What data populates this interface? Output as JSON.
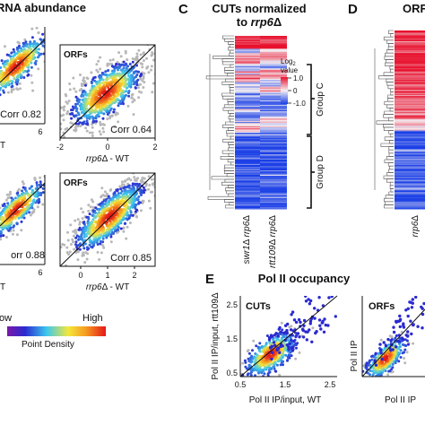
{
  "colors": {
    "heat_red": "#e8112d",
    "heat_white": "#f4f0f4",
    "heat_blue": "#1a3fe6",
    "density_low": "#2a2ad0",
    "density_mid": "#3cc8ee",
    "density_high": "#e41818",
    "scatter_gray": "#b8b8b8"
  },
  "panel_a": {
    "title_fragment": "RNA abundance",
    "plots": [
      {
        "tag": "",
        "corr_label": "Corr 0.82",
        "tick_right": "6",
        "xlabel_fragment": "T"
      },
      {
        "tag": "ORFs",
        "corr_label": "Corr 0.64",
        "xticks": [
          "-2",
          "0",
          "2"
        ],
        "xlabel_prefix": "rrp6",
        "xlabel_suffix": "Δ - WT"
      },
      {
        "tag": "",
        "corr_label": "orr 0.88",
        "tick_right": "6",
        "xlabel_fragment": "T"
      },
      {
        "tag": "ORFs",
        "corr_label": "Corr 0.85",
        "xticks": [
          "0",
          "1",
          "2"
        ],
        "xlabel_prefix": "rrp6",
        "xlabel_suffix": "Δ - WT"
      }
    ],
    "legend": {
      "low": "ow",
      "high": "High",
      "caption": "Point Density"
    }
  },
  "panel_c": {
    "letter": "C",
    "title_line1": "CUTs normalized",
    "title_line2_prefix": "to ",
    "title_line2_italic": "rrp6",
    "title_line2_suffix": "Δ",
    "legend_title_line1": "Log",
    "legend_title_sub": "2",
    "legend_title_line2": "value",
    "legend_ticks": [
      "1.0",
      "0",
      "-1.0"
    ],
    "group_c": "Group C",
    "group_d": "Group D",
    "col_labels": [
      {
        "a": "swr1",
        "b": "Δ ",
        "c": "rrp6",
        "d": "Δ"
      },
      {
        "a": "rtt109",
        "b": "Δ ",
        "c": "rrp6",
        "d": "Δ"
      }
    ]
  },
  "panel_d": {
    "letter": "D",
    "title_fragment": "ORF",
    "col_label_prefix": "rrp6",
    "col_label_suffix": "Δ"
  },
  "panel_e": {
    "letter": "E",
    "title": "Pol II occupancy",
    "ylabel_line1": "Pol II IP/input, rtt109Δ",
    "xlabel": "Pol II IP/input, WT",
    "cuts_tag": "CUTs",
    "orfs_tag": "ORFs",
    "yticks": [
      "2.5",
      "1.5",
      "0.5"
    ],
    "xticks": [
      "0.5",
      "1.5",
      "2.5"
    ],
    "xlabel_fragment": "Pol II IP"
  },
  "chart_data": [
    {
      "type": "scatter",
      "panel": "A",
      "tag": "",
      "corr": 0.82
    },
    {
      "type": "scatter",
      "panel": "A",
      "tag": "ORFs",
      "corr": 0.64,
      "xlim": [
        -2,
        2
      ],
      "xlabel": "rrp6Δ - WT"
    },
    {
      "type": "scatter",
      "panel": "A",
      "tag": "",
      "corr": 0.88
    },
    {
      "type": "scatter",
      "panel": "A",
      "tag": "ORFs",
      "corr": 0.85,
      "xlim": [
        0,
        2
      ],
      "xlabel": "rrp6Δ - WT"
    },
    {
      "type": "heatmap",
      "panel": "C",
      "title": "CUTs normalized to rrp6Δ",
      "columns": [
        "swr1Δ rrp6Δ",
        "rtt109Δ rrp6Δ"
      ],
      "value_range": [
        -1.0,
        1.0
      ],
      "groups": [
        "Group C",
        "Group D"
      ]
    },
    {
      "type": "heatmap",
      "panel": "D",
      "columns": [
        "rrp6Δ"
      ]
    },
    {
      "type": "scatter",
      "panel": "E",
      "title": "Pol II occupancy",
      "tag": "CUTs",
      "xlabel": "Pol II IP/input, WT",
      "ylabel": "Pol II IP/input, rtt109Δ",
      "xlim": [
        0.5,
        2.5
      ],
      "ylim": [
        0.5,
        2.5
      ],
      "diagonal": "y = x"
    },
    {
      "type": "scatter",
      "panel": "E",
      "tag": "ORFs"
    }
  ]
}
